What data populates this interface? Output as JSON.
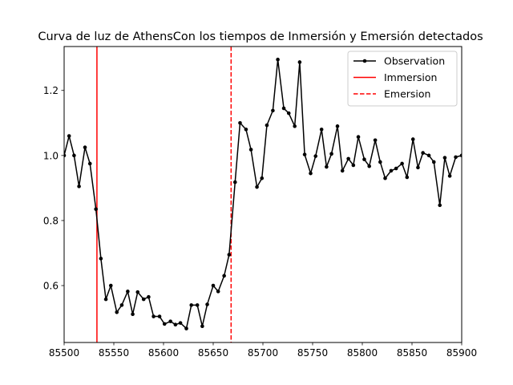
{
  "chart_data": {
    "type": "line",
    "title": "Curva de luz de AthensCon los tiempos de Inmersión y Emersión detectados",
    "xlabel": "",
    "ylabel": "",
    "xlim": [
      85500,
      85900
    ],
    "ylim": [
      0.425,
      1.335
    ],
    "xticks": [
      85500,
      85550,
      85600,
      85650,
      85700,
      85750,
      85800,
      85850,
      85900
    ],
    "yticks": [
      0.6,
      0.8,
      1.0,
      1.2
    ],
    "grid": false,
    "legend_position": "top-right",
    "series": [
      {
        "name": "Observation",
        "color": "#000000",
        "marker": "dot",
        "x": [
          85500,
          85505,
          85510,
          85515,
          85521,
          85526,
          85532,
          85537,
          85542,
          85547,
          85553,
          85558,
          85564,
          85569,
          85574,
          85580,
          85585,
          85590,
          85596,
          85601,
          85607,
          85612,
          85617,
          85623,
          85628,
          85634,
          85639,
          85644,
          85650,
          85655,
          85661,
          85666,
          85672,
          85677,
          85683,
          85688,
          85694,
          85699,
          85704,
          85710,
          85715,
          85721,
          85726,
          85732,
          85737,
          85742,
          85748,
          85753,
          85759,
          85764,
          85769,
          85775,
          85780,
          85786,
          85791,
          85796,
          85802,
          85807,
          85813,
          85818,
          85823,
          85829,
          85834,
          85840,
          85845,
          85851,
          85856,
          85861,
          85867,
          85872,
          85878,
          85883,
          85888,
          85894,
          85900
        ],
        "y": [
          1.0,
          1.06,
          1.0,
          0.905,
          1.025,
          0.975,
          0.835,
          0.683,
          0.558,
          0.6,
          0.518,
          0.54,
          0.582,
          0.512,
          0.58,
          0.558,
          0.565,
          0.505,
          0.505,
          0.482,
          0.49,
          0.48,
          0.485,
          0.468,
          0.54,
          0.54,
          0.475,
          0.542,
          0.6,
          0.582,
          0.63,
          0.695,
          0.918,
          1.1,
          1.08,
          1.018,
          0.903,
          0.93,
          1.093,
          1.138,
          1.295,
          1.145,
          1.13,
          1.09,
          1.287,
          1.003,
          0.945,
          0.998,
          1.08,
          0.965,
          1.005,
          1.09,
          0.953,
          0.99,
          0.97,
          1.057,
          0.988,
          0.967,
          1.047,
          0.98,
          0.93,
          0.953,
          0.96,
          0.975,
          0.933,
          1.05,
          0.963,
          1.008,
          1.0,
          0.98,
          0.847,
          0.993,
          0.937,
          0.995,
          1.0
        ]
      }
    ],
    "vlines": [
      {
        "name": "Immersion",
        "x": 85533,
        "color": "#ff0000",
        "style": "solid"
      },
      {
        "name": "Emersion",
        "x": 85668,
        "color": "#ff0000",
        "style": "dashed"
      }
    ]
  }
}
